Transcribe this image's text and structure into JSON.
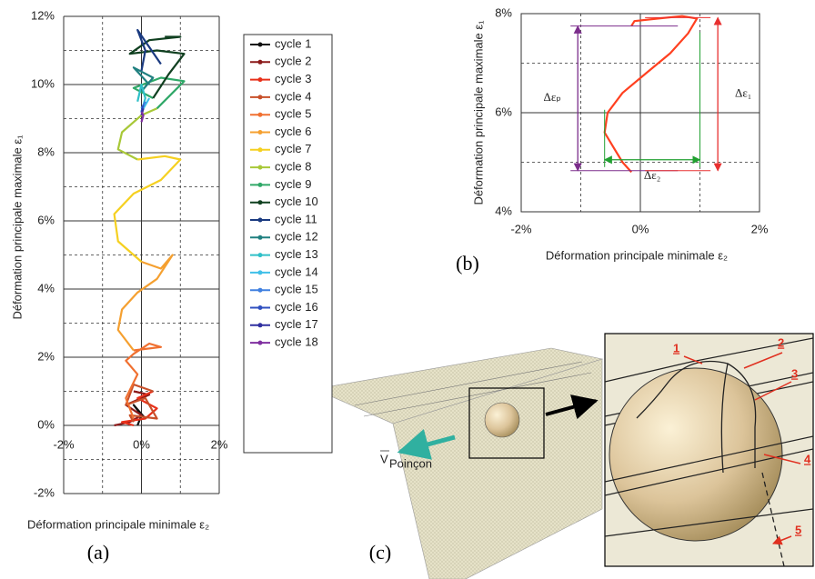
{
  "chart_data": [
    {
      "type": "line",
      "xlabel": "Déformation principale minimale ε₂",
      "ylabel": "Déformation principale maximale ε₁",
      "xlim": [
        -2,
        2
      ],
      "ylim": [
        -2,
        12
      ],
      "xticks": [
        {
          "value": -2,
          "label": "-2%"
        },
        {
          "value": 0,
          "label": "0%"
        },
        {
          "value": 2,
          "label": "2%"
        }
      ],
      "yticks": [
        {
          "value": -2,
          "label": "-2%"
        },
        {
          "value": 0,
          "label": "0%"
        },
        {
          "value": 2,
          "label": "2%"
        },
        {
          "value": 4,
          "label": "4%"
        },
        {
          "value": 6,
          "label": "6%"
        },
        {
          "value": 8,
          "label": "8%"
        },
        {
          "value": 10,
          "label": "10%"
        },
        {
          "value": 12,
          "label": "12%"
        }
      ],
      "xminor": [
        -1,
        1
      ],
      "yminor": [
        -1,
        1,
        3,
        5,
        7,
        9,
        11
      ],
      "grid": true,
      "xaxis_position": "zero",
      "legend": "right",
      "series": [
        {
          "name": "cycle 1",
          "color": "#111111",
          "x": [
            -0.1,
            0,
            -0.2,
            0.1
          ],
          "values": [
            0,
            0.3,
            0.6,
            0.2
          ]
        },
        {
          "name": "cycle 2",
          "color": "#8b1a1a",
          "x": [
            -0.7,
            -0.3,
            0,
            -0.4,
            0.2,
            -0.2
          ],
          "values": [
            0,
            0.1,
            0.3,
            0.6,
            0.9,
            1.0
          ]
        },
        {
          "name": "cycle 3",
          "color": "#e8301a",
          "x": [
            -0.2,
            -0.5,
            0.1,
            0.4,
            -0.1,
            0.3
          ],
          "values": [
            0,
            0.1,
            0.2,
            0.5,
            0.8,
            1.0
          ]
        },
        {
          "name": "cycle 4",
          "color": "#c8502a",
          "x": [
            0.3,
            -0.2,
            -0.4,
            0.1,
            0.4,
            -0.3,
            -0.2
          ],
          "values": [
            1.0,
            1.2,
            0.6,
            0.8,
            0.2,
            0.3,
            0.1
          ]
        },
        {
          "name": "cycle 5",
          "color": "#f07030",
          "x": [
            -0.2,
            -0.4,
            -0.1,
            -0.4,
            -0.2,
            0.2,
            0.5,
            -0.2
          ],
          "values": [
            0.2,
            0.8,
            1.5,
            1.9,
            2.1,
            2.4,
            2.3,
            2.2
          ]
        },
        {
          "name": "cycle 6",
          "color": "#f5a030",
          "x": [
            -0.2,
            -0.6,
            -0.5,
            -0.1,
            0.4,
            0.8,
            0.5,
            0
          ],
          "values": [
            2.2,
            2.8,
            3.4,
            3.9,
            4.3,
            5.0,
            4.6,
            4.8
          ]
        },
        {
          "name": "cycle 7",
          "color": "#f5d020",
          "x": [
            0,
            -0.6,
            -0.7,
            -0.2,
            0.5,
            1.0,
            0.6,
            -0.1
          ],
          "values": [
            4.8,
            5.4,
            6.2,
            6.8,
            7.2,
            7.8,
            7.9,
            7.8
          ]
        },
        {
          "name": "cycle 8",
          "color": "#a8c838",
          "x": [
            -0.1,
            -0.6,
            -0.5,
            0,
            0.4
          ],
          "values": [
            7.8,
            8.1,
            8.6,
            9.1,
            9.3
          ]
        },
        {
          "name": "cycle 9",
          "color": "#30a868",
          "x": [
            0.4,
            1.1,
            0.5,
            -0.2,
            0.3
          ],
          "values": [
            9.3,
            10.1,
            10.2,
            9.9,
            9.6
          ]
        },
        {
          "name": "cycle 10",
          "color": "#104020",
          "x": [
            0.3,
            0.7,
            1.1,
            0.4,
            -0.3,
            0.2,
            1.0,
            0.6
          ],
          "values": [
            9.6,
            10.3,
            10.9,
            11.0,
            10.9,
            11.3,
            11.4,
            11.4
          ]
        },
        {
          "name": "cycle 11",
          "color": "#1a3a80",
          "x": [
            0,
            0.1,
            -0.1,
            0.5
          ],
          "values": [
            10.4,
            11.0,
            11.6,
            10.6
          ]
        },
        {
          "name": "cycle 12",
          "color": "#208080",
          "x": [
            0,
            0.3,
            -0.2,
            0.2
          ],
          "values": [
            9.8,
            10.2,
            10.5,
            10.0
          ]
        },
        {
          "name": "cycle 13",
          "color": "#30c0c8",
          "x": [
            0,
            0.1,
            0,
            -0.1
          ],
          "values": [
            9.2,
            9.6,
            10.0,
            9.5
          ]
        },
        {
          "name": "cycle 14",
          "color": "#40c0e8",
          "x": [
            0.1,
            0,
            0.2
          ],
          "values": [
            9.4,
            9.2,
            9.6
          ]
        },
        {
          "name": "cycle 15",
          "color": "#4080e0",
          "x": [
            0,
            0.1
          ],
          "values": [
            9.3,
            9.5
          ]
        },
        {
          "name": "cycle 16",
          "color": "#3050c0",
          "x": [
            0,
            0.05
          ],
          "values": [
            9.2,
            9.4
          ]
        },
        {
          "name": "cycle 17",
          "color": "#3030a0",
          "x": [
            0,
            0.05
          ],
          "values": [
            9.1,
            9.3
          ]
        },
        {
          "name": "cycle 18",
          "color": "#8030a0",
          "x": [
            0,
            0.05,
            0
          ],
          "values": [
            8.9,
            9.1,
            9.2
          ]
        }
      ]
    },
    {
      "type": "line",
      "xlabel": "Déformation principale minimale ε₂",
      "ylabel": "Déformation principale maximale ε₁",
      "xlim": [
        -2,
        2
      ],
      "ylim": [
        4,
        8
      ],
      "xticks": [
        {
          "value": -2,
          "label": "-2%"
        },
        {
          "value": 0,
          "label": "0%"
        },
        {
          "value": 2,
          "label": "2%"
        }
      ],
      "yticks": [
        {
          "value": 4,
          "label": "4%"
        },
        {
          "value": 6,
          "label": "6%"
        },
        {
          "value": 8,
          "label": "8%"
        }
      ],
      "xminor": [
        -1,
        1
      ],
      "yminor": [
        5,
        7
      ],
      "grid": true,
      "frame": true,
      "xaxis_position": "bottom",
      "color": "#ff4020",
      "x": [
        -0.15,
        -0.3,
        -0.45,
        -0.6,
        -0.55,
        -0.3,
        0.1,
        0.5,
        0.8,
        0.95,
        0.7,
        0.3,
        -0.1,
        -0.15
      ],
      "values": [
        4.8,
        5.0,
        5.3,
        5.6,
        6.0,
        6.4,
        6.8,
        7.2,
        7.6,
        7.9,
        7.95,
        7.9,
        7.85,
        7.75
      ],
      "annotations": [
        {
          "text": "Δεₚ",
          "color": "#7b2d8b",
          "from": [
            -1.05,
            4.83
          ],
          "to": [
            -1.05,
            7.75
          ]
        },
        {
          "text": "Δε₁",
          "color": "#e83030",
          "from": [
            1.3,
            4.83
          ],
          "to": [
            1.3,
            7.92
          ]
        },
        {
          "text": "Δε₂",
          "color": "#20a030",
          "from": [
            -0.6,
            5.05
          ],
          "to": [
            1.0,
            5.05
          ]
        }
      ]
    }
  ],
  "panel_labels": [
    "(a)",
    "(b)",
    "(c)"
  ],
  "diagram": {
    "velocity_label": "V",
    "velocity_subscript": "Poinçon",
    "callouts": [
      "1",
      "2",
      "3",
      "4",
      "5"
    ]
  }
}
